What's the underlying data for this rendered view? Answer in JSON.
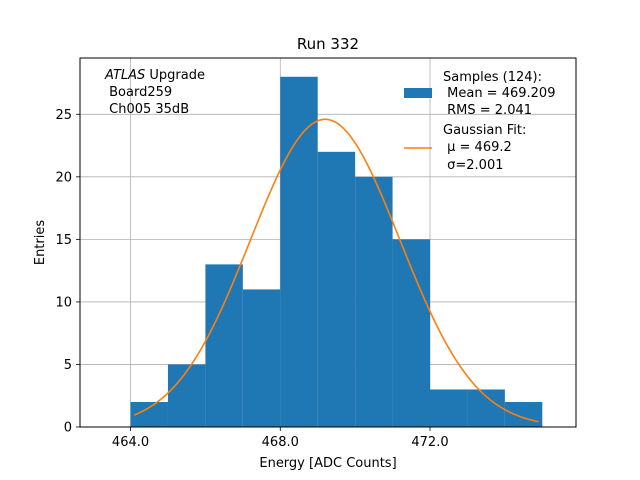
{
  "chart_data": {
    "type": "bar",
    "title": "Run 332",
    "xlabel": "Energy [ADC Counts]",
    "ylabel": "Entries",
    "xlim": [
      462.65,
      475.9
    ],
    "ylim": [
      0,
      29.5
    ],
    "grid": true,
    "xticks": [
      464.0,
      468.0,
      472.0
    ],
    "xtick_labels": [
      "464.0",
      "468.0",
      "472.0"
    ],
    "yticks": [
      0,
      5,
      10,
      15,
      20,
      25
    ],
    "ytick_labels": [
      "0",
      "5",
      "10",
      "15",
      "20",
      "25"
    ],
    "histogram": {
      "name": "Samples (124):",
      "color": "#1f77b4",
      "bin_edges": [
        464.0,
        465.0,
        466.0,
        467.0,
        468.0,
        469.0,
        470.0,
        471.0,
        472.0,
        473.0,
        474.0,
        475.0
      ],
      "counts": [
        2,
        5,
        13,
        11,
        28,
        22,
        20,
        15,
        3,
        3,
        2
      ]
    },
    "fit": {
      "name": "Gaussian Fit:",
      "color": "#ff7f0e",
      "type": "gaussian",
      "mu": 469.2,
      "sigma": 2.001,
      "amplitude": 24.6,
      "x_range": [
        464.1,
        474.9
      ]
    },
    "legend": {
      "position": "top-right",
      "samples_lines": [
        "Samples (124):",
        " Mean = 469.209",
        " RMS = 2.041"
      ],
      "fit_lines": [
        "Gaussian Fit:",
        " μ = 469.2",
        " σ=2.001"
      ]
    },
    "annotation": {
      "italic": "ATLAS",
      "lines": [
        " Upgrade",
        " Board259",
        " Ch005 35dB"
      ]
    }
  }
}
